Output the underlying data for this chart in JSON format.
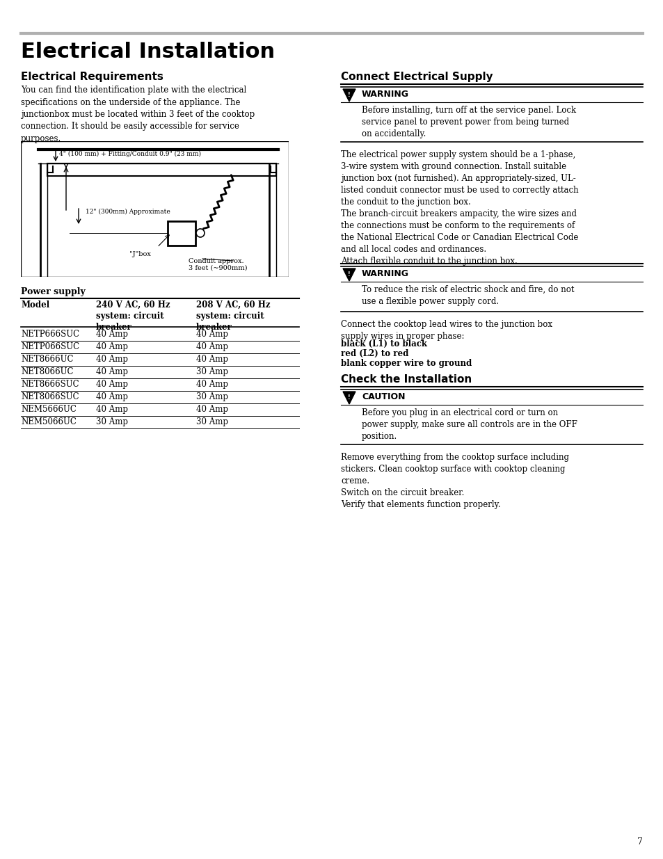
{
  "page_title": "Electrical Installation",
  "left_col": {
    "section_title": "Electrical Requirements",
    "body_text": "You can find the identification plate with the electrical\nspecifications on the underside of the appliance. The\njunctionbox must be located within 3 feet of the cooktop\nconnection. It should be easily accessible for service\npurposes.",
    "diagram_labels": {
      "top_arrow": "4\" (100 mm) + Fitting/Conduit 0.9\" (23 mm)",
      "side_label": "12\" (300mm) Approximate",
      "jbox_label": "\"J\"box",
      "conduit_label": "Conduit approx.\n3 feet (~900mm)"
    },
    "power_supply_title": "Power supply",
    "table_headers": [
      "Model",
      "240 V AC, 60 Hz\nsystem: circuit\nbreaker",
      "208 V AC, 60 Hz\nsystem: circuit\nbreaker"
    ],
    "table_rows": [
      [
        "NETP666SUC",
        "40 Amp",
        "40 Amp"
      ],
      [
        "NETP066SUC",
        "40 Amp",
        "40 Amp"
      ],
      [
        "NET8666UC",
        "40 Amp",
        "40 Amp"
      ],
      [
        "NET8066UC",
        "40 Amp",
        "30 Amp"
      ],
      [
        "NET8666SUC",
        "40 Amp",
        "40 Amp"
      ],
      [
        "NET8066SUC",
        "40 Amp",
        "30 Amp"
      ],
      [
        "NEM5666UC",
        "40 Amp",
        "40 Amp"
      ],
      [
        "NEM5066UC",
        "30 Amp",
        "30 Amp"
      ]
    ]
  },
  "right_col": {
    "section_title": "Connect Electrical Supply",
    "warning1_title": "WARNING",
    "warning1_text": "Before installing, turn off at the service panel. Lock\nservice panel to prevent power from being turned\non accidentally.",
    "body_text1": "The electrical power supply system should be a 1-phase,\n3-wire system with ground connection. Install suitable\njunction box (not furnished). An appropriately-sized, UL-\nlisted conduit connector must be used to correctly attach\nthe conduit to the junction box.\nThe branch-circuit breakers ampacity, the wire sizes and\nthe connections must be conform to the requirements of\nthe National Electrical Code or Canadian Electrical Code\nand all local codes and ordinances.\nAttach flexible conduit to the junction box.",
    "warning2_title": "WARNING",
    "warning2_text": "To reduce the risk of electric shock and fire, do not\nuse a flexible power supply cord.",
    "body_text2": "Connect the cooktop lead wires to the junction box\nsupply wires in proper phase:",
    "bold_lines": [
      "black (L1) to black",
      "red (L2) to red",
      "blank copper wire to ground"
    ],
    "section_title2": "Check the Installation",
    "caution_title": "CAUTION",
    "caution_text": "Before you plug in an electrical cord or turn on\npower supply, make sure all controls are in the OFF\nposition.",
    "body_text3": "Remove everything from the cooktop surface including\nstickers. Clean cooktop surface with cooktop cleaning\ncreme.\nSwitch on the circuit breaker.\nVerify that elements function properly."
  },
  "page_number": "7",
  "bg_color": "#ffffff"
}
